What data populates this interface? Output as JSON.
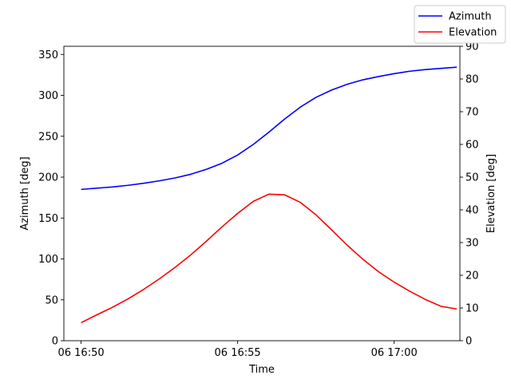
{
  "chart_data": {
    "type": "line",
    "xlabel": "Time",
    "ylabel": "Azimuth [deg]",
    "y2label": "Elevation [deg]",
    "x_ticks": [
      {
        "minute": 0,
        "label": "06 16:50"
      },
      {
        "minute": 5,
        "label": "06 16:55"
      },
      {
        "minute": 10,
        "label": "06 17:00"
      }
    ],
    "xlim": [
      -0.55,
      12.1
    ],
    "ylim": [
      0,
      360
    ],
    "y2lim": [
      0,
      90
    ],
    "y_ticks": [
      0,
      50,
      100,
      150,
      200,
      250,
      300,
      350
    ],
    "y2_ticks": [
      0,
      10,
      20,
      30,
      40,
      50,
      60,
      70,
      80,
      90
    ],
    "x": [
      0,
      0.5,
      1,
      1.5,
      2,
      2.5,
      3,
      3.5,
      4,
      4.5,
      5,
      5.5,
      6,
      6.5,
      7,
      7.5,
      8,
      8.5,
      9,
      9.5,
      10,
      10.5,
      11,
      11.5,
      12
    ],
    "series": [
      {
        "name": "Azimuth",
        "axis": "left",
        "color": "#0000ff",
        "values": [
          185,
          186.5,
          188,
          190,
          192.5,
          195.5,
          199,
          203.5,
          209.5,
          217,
          227,
          240,
          255,
          271,
          285.5,
          297.5,
          306.5,
          313.5,
          319,
          323,
          326.5,
          329.5,
          331.5,
          333,
          334.5
        ]
      },
      {
        "name": "Elevation",
        "axis": "right",
        "color": "#ff0000",
        "values": [
          5.5,
          7.9,
          10.2,
          12.8,
          15.7,
          18.9,
          22.4,
          26.2,
          30.4,
          34.8,
          38.9,
          42.6,
          44.8,
          44.6,
          42.3,
          38.5,
          33.9,
          29.2,
          24.9,
          21.1,
          17.9,
          15.1,
          12.6,
          10.5,
          9.7
        ]
      }
    ],
    "legend_position": "top-right",
    "grid": false
  }
}
